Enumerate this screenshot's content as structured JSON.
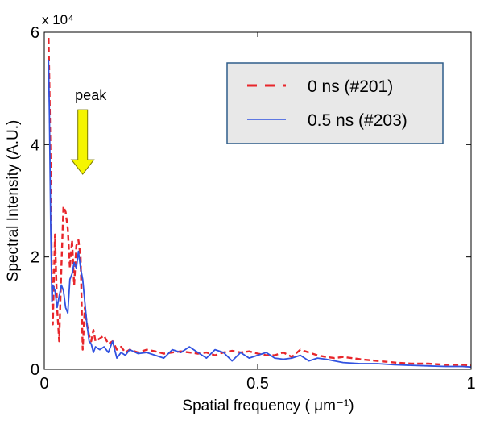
{
  "chart_data": {
    "type": "line",
    "xlabel": "Spatial frequency ( μm⁻¹)",
    "ylabel": "Spectral Intensity (A.U.)",
    "xlim": [
      0,
      1
    ],
    "ylim": [
      0,
      6
    ],
    "y_multiplier_label": "x 10⁴",
    "xticks": [
      "0",
      "0.5",
      "1"
    ],
    "yticks": [
      "0",
      "2",
      "4",
      "6"
    ],
    "legend_position": "top-right",
    "annotation": {
      "text": "peak",
      "x": 0.09,
      "y": 3.3,
      "color": "#f5f500"
    },
    "series": [
      {
        "name": "0 ns (#201)",
        "color": "#e8262b",
        "dash": "dashed",
        "x": [
          0.01,
          0.012,
          0.015,
          0.018,
          0.02,
          0.025,
          0.03,
          0.035,
          0.04,
          0.045,
          0.05,
          0.055,
          0.06,
          0.065,
          0.07,
          0.075,
          0.08,
          0.085,
          0.09,
          0.095,
          0.1,
          0.105,
          0.11,
          0.115,
          0.12,
          0.13,
          0.14,
          0.15,
          0.16,
          0.17,
          0.18,
          0.19,
          0.2,
          0.22,
          0.24,
          0.26,
          0.28,
          0.3,
          0.32,
          0.34,
          0.36,
          0.38,
          0.4,
          0.42,
          0.44,
          0.46,
          0.48,
          0.5,
          0.52,
          0.54,
          0.56,
          0.58,
          0.6,
          0.62,
          0.64,
          0.66,
          0.68,
          0.7,
          0.74,
          0.78,
          0.82,
          0.86,
          0.9,
          0.94,
          0.98,
          1.0
        ],
        "y": [
          5.9,
          5.0,
          3.5,
          1.5,
          0.8,
          2.4,
          1.1,
          0.5,
          1.8,
          2.9,
          2.8,
          2.5,
          1.8,
          2.3,
          1.5,
          2.2,
          2.3,
          2.0,
          0.35,
          1.1,
          0.8,
          0.6,
          0.5,
          0.7,
          0.5,
          0.55,
          0.6,
          0.45,
          0.5,
          0.35,
          0.4,
          0.3,
          0.35,
          0.3,
          0.35,
          0.32,
          0.28,
          0.3,
          0.32,
          0.3,
          0.28,
          0.3,
          0.25,
          0.3,
          0.33,
          0.3,
          0.32,
          0.28,
          0.25,
          0.25,
          0.3,
          0.22,
          0.35,
          0.3,
          0.25,
          0.22,
          0.2,
          0.22,
          0.18,
          0.15,
          0.12,
          0.1,
          0.1,
          0.08,
          0.08,
          0.07
        ]
      },
      {
        "name": "0.5 ns (#203)",
        "color": "#3152e0",
        "dash": "solid",
        "x": [
          0.01,
          0.012,
          0.015,
          0.018,
          0.02,
          0.025,
          0.03,
          0.035,
          0.04,
          0.045,
          0.05,
          0.055,
          0.06,
          0.065,
          0.07,
          0.075,
          0.08,
          0.085,
          0.09,
          0.095,
          0.1,
          0.105,
          0.11,
          0.115,
          0.12,
          0.13,
          0.14,
          0.15,
          0.16,
          0.17,
          0.18,
          0.19,
          0.2,
          0.22,
          0.24,
          0.26,
          0.28,
          0.3,
          0.32,
          0.34,
          0.36,
          0.38,
          0.4,
          0.42,
          0.44,
          0.46,
          0.48,
          0.5,
          0.52,
          0.54,
          0.56,
          0.58,
          0.6,
          0.62,
          0.64,
          0.66,
          0.68,
          0.7,
          0.74,
          0.78,
          0.82,
          0.86,
          0.9,
          0.94,
          0.98,
          1.0
        ],
        "y": [
          5.5,
          4.5,
          2.5,
          1.2,
          1.5,
          1.4,
          1.1,
          1.3,
          1.5,
          1.4,
          1.1,
          1.0,
          1.6,
          1.7,
          1.9,
          1.8,
          2.1,
          1.8,
          1.6,
          1.2,
          0.8,
          0.5,
          0.45,
          0.3,
          0.4,
          0.35,
          0.4,
          0.3,
          0.5,
          0.2,
          0.3,
          0.25,
          0.35,
          0.28,
          0.3,
          0.25,
          0.2,
          0.35,
          0.3,
          0.4,
          0.3,
          0.2,
          0.35,
          0.3,
          0.15,
          0.3,
          0.2,
          0.25,
          0.3,
          0.2,
          0.18,
          0.2,
          0.25,
          0.15,
          0.2,
          0.18,
          0.15,
          0.12,
          0.1,
          0.1,
          0.08,
          0.07,
          0.06,
          0.05,
          0.05,
          0.04
        ]
      }
    ]
  }
}
